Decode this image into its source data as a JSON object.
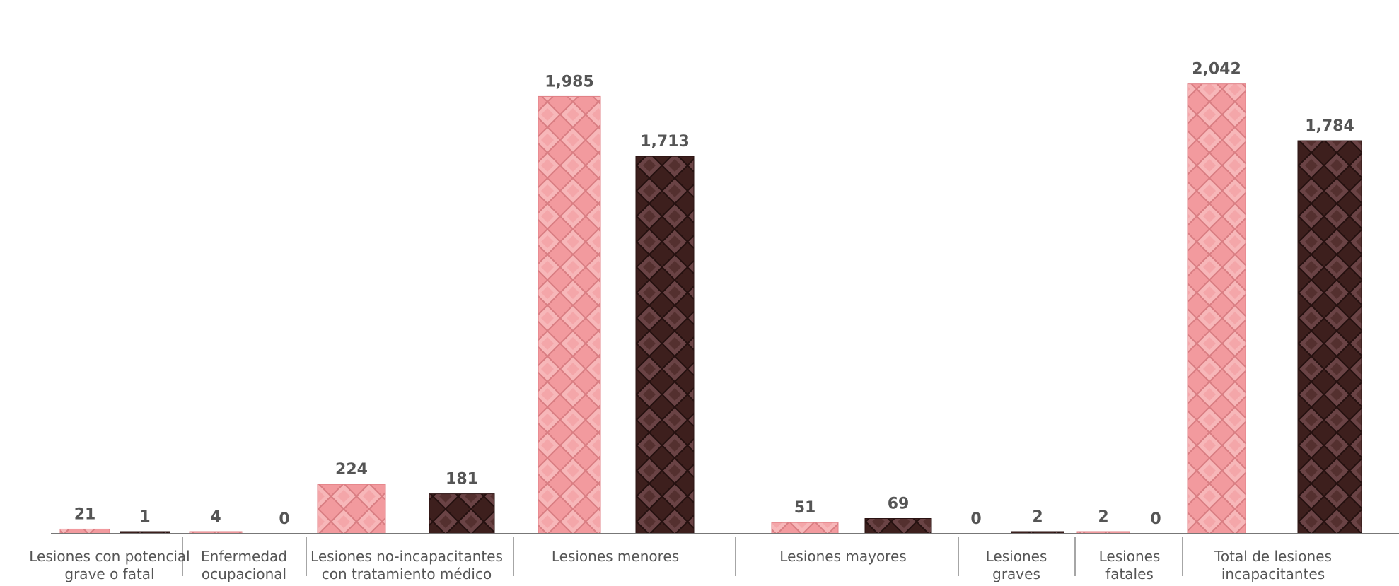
{
  "chart_data": {
    "type": "bar",
    "categories": [
      "Lesiones con potencial\ngrave o fatal",
      "Enfermedad\nocupacional",
      "Lesiones no-incapacitantes\ncon tratamiento médico",
      "Lesiones menores",
      "Lesiones mayores",
      "Lesiones\ngraves",
      "Lesiones\nfatales",
      "Total de lesiones\nincapacitantes"
    ],
    "series": [
      {
        "color": "#f29a9e",
        "values": [
          21,
          4,
          224,
          1985,
          51,
          0,
          2,
          2042
        ],
        "labels": [
          "21",
          "4",
          "224",
          "1,985",
          "51",
          "0",
          "2",
          "2,042"
        ]
      },
      {
        "color": "#3d1f1d",
        "values": [
          1,
          0,
          181,
          1713,
          69,
          2,
          0,
          1784
        ],
        "labels": [
          "1",
          "0",
          "181",
          "1,713",
          "69",
          "2",
          "0",
          "1,784"
        ]
      }
    ],
    "title": "",
    "xlabel": "",
    "ylabel": "",
    "ylim": [
      0,
      2150
    ],
    "grid": false,
    "legend": "none"
  }
}
